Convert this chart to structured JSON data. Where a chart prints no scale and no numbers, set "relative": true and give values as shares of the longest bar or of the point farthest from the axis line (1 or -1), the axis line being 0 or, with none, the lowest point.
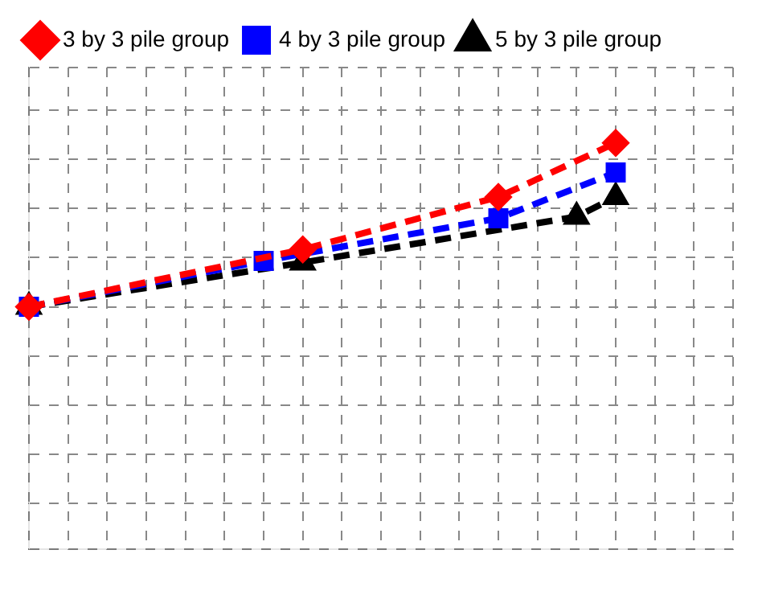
{
  "chart_data": {
    "type": "line",
    "relative": true,
    "categories": [
      null,
      null,
      null,
      null,
      null,
      null,
      null,
      null,
      null,
      null,
      null,
      null,
      null,
      null,
      null,
      null,
      null,
      null,
      null
    ],
    "series": [
      {
        "name": "3 by 3 pile group",
        "color": "#ff0000",
        "marker": "diamond",
        "values": [
          0,
          null,
          null,
          null,
          null,
          null,
          null,
          0.35,
          null,
          null,
          null,
          null,
          0.67,
          null,
          null,
          1,
          null,
          null,
          null
        ]
      },
      {
        "name": "4 by 3 pile group",
        "color": "#0000ff",
        "marker": "square",
        "values": [
          0,
          null,
          null,
          null,
          null,
          null,
          0.28,
          null,
          null,
          null,
          null,
          null,
          0.54,
          null,
          null,
          0.82,
          null,
          null,
          null
        ]
      },
      {
        "name": "5 by 3 pile group",
        "color": "#000000",
        "marker": "triangle",
        "values": [
          0,
          null,
          null,
          null,
          null,
          null,
          null,
          0.27,
          null,
          null,
          null,
          null,
          null,
          null,
          0.55,
          0.67,
          null,
          null,
          null
        ]
      }
    ],
    "line_style": "dashed",
    "grid": true,
    "legend": "top left"
  }
}
